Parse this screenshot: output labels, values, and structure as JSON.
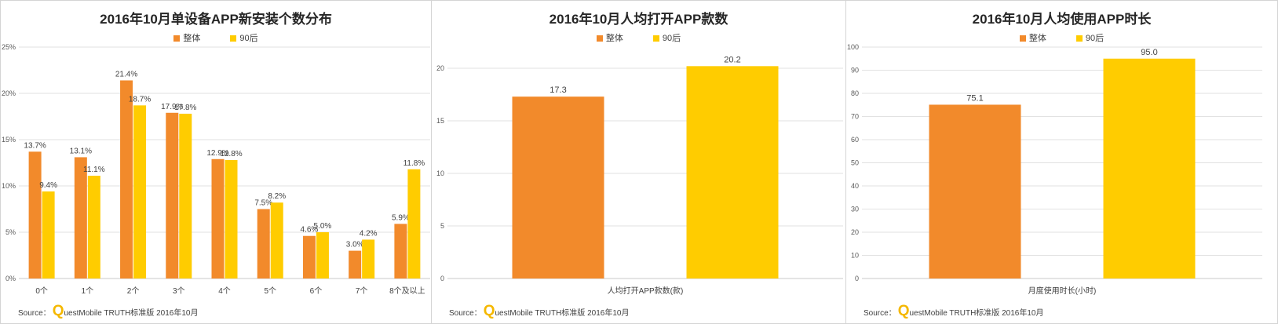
{
  "colors": {
    "source_logo": "#F5B800"
  },
  "source": {
    "label": "Source：",
    "logo_letter": "Q",
    "text": "uestMobile TRUTH标准版 2016年10月"
  },
  "chart_data": [
    {
      "type": "bar",
      "title": "2016年10月单设备APP新安装个数分布",
      "categories": [
        "0个",
        "1个",
        "2个",
        "3个",
        "4个",
        "5个",
        "6个",
        "7个",
        "8个及以上"
      ],
      "series": [
        {
          "name": "整体",
          "color": "#F28A2B",
          "values": [
            13.7,
            13.1,
            21.4,
            17.9,
            12.9,
            7.5,
            4.6,
            3.0,
            5.9
          ],
          "labels": [
            "13.7%",
            "13.1%",
            "21.4%",
            "17.9%",
            "12.9%",
            "7.5%",
            "4.6%",
            "3.0%",
            "5.9%"
          ]
        },
        {
          "name": "90后",
          "color": "#FFCC00",
          "values": [
            9.4,
            11.1,
            18.7,
            17.8,
            12.8,
            8.2,
            5.0,
            4.2,
            11.8
          ],
          "labels": [
            "9.4%",
            "11.1%",
            "18.7%",
            "17.8%",
            "12.8%",
            "8.2%",
            "5.0%",
            "4.2%",
            "11.8%"
          ]
        }
      ],
      "yticks": [
        0,
        5,
        10,
        15,
        20,
        25
      ],
      "ytick_labels": [
        "0%",
        "5%",
        "10%",
        "15%",
        "20%",
        "25%"
      ],
      "ylim": [
        0,
        25
      ],
      "grid": true,
      "legend": "top-center"
    },
    {
      "type": "bar",
      "title": "2016年10月人均打开APP款数",
      "categories": [
        "人均打开APP款数(款)"
      ],
      "series": [
        {
          "name": "整体",
          "color": "#F28A2B",
          "values": [
            17.3
          ],
          "labels": [
            "17.3"
          ]
        },
        {
          "name": "90后",
          "color": "#FFCC00",
          "values": [
            20.2
          ],
          "labels": [
            "20.2"
          ]
        }
      ],
      "yticks": [
        0,
        5,
        10,
        15,
        20
      ],
      "ytick_labels": [
        "0",
        "5",
        "10",
        "15",
        "20"
      ],
      "ylim": [
        0,
        20
      ],
      "grid": true,
      "legend": "top-center"
    },
    {
      "type": "bar",
      "title": "2016年10月人均使用APP时长",
      "categories": [
        "月度使用时长(小时)"
      ],
      "series": [
        {
          "name": "整体",
          "color": "#F28A2B",
          "values": [
            75.1
          ],
          "labels": [
            "75.1"
          ]
        },
        {
          "name": "90后",
          "color": "#FFCC00",
          "values": [
            95.0
          ],
          "labels": [
            "95.0"
          ]
        }
      ],
      "yticks": [
        0,
        10,
        20,
        30,
        40,
        50,
        60,
        70,
        80,
        90,
        100
      ],
      "ytick_labels": [
        "0",
        "10",
        "20",
        "30",
        "40",
        "50",
        "60",
        "70",
        "80",
        "90",
        "100"
      ],
      "ylim": [
        0,
        100
      ],
      "grid": true,
      "legend": "top-center"
    }
  ]
}
